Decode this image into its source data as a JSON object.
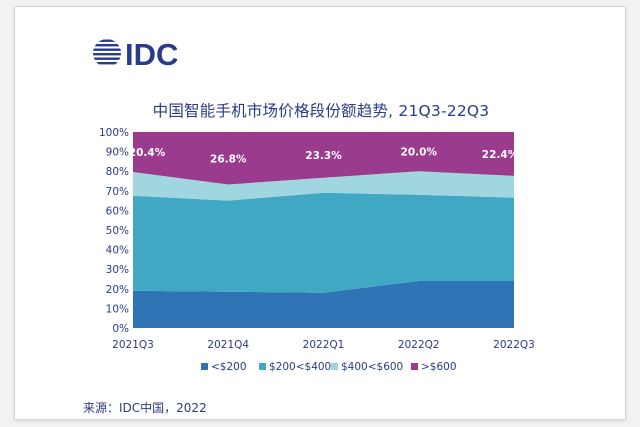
{
  "logo_text": "IDC",
  "footer": {
    "source": "来源：IDC中国，2022"
  },
  "colors": {
    "navy": "#2a3a8c",
    "series": [
      "#2e74b5",
      "#41a8c4",
      "#9fd6df",
      "#9b3b8d"
    ],
    "band_labels": "#ffffff"
  },
  "chart_data": {
    "type": "area",
    "stacked": true,
    "title": "中国智能手机市场价格段份额趋势, 21Q3-22Q3",
    "categories": [
      "2021Q3",
      "2021Q4",
      "2022Q1",
      "2022Q2",
      "2022Q3"
    ],
    "series": [
      {
        "name": "<$200",
        "values": [
          19.0,
          18.5,
          18.0,
          24.0,
          24.0
        ]
      },
      {
        "name": "$200<$400",
        "values": [
          48.5,
          46.5,
          51.0,
          44.0,
          42.5
        ]
      },
      {
        "name": "$400<$600",
        "values": [
          12.1,
          8.2,
          7.7,
          12.0,
          11.1
        ]
      },
      {
        "name": ">$600",
        "values": [
          20.4,
          26.8,
          23.3,
          20.0,
          22.4
        ]
      }
    ],
    "data_labels": [
      "20.4%",
      "26.8%",
      "23.3%",
      "20.0%",
      "22.4%"
    ],
    "y_ticks": [
      "0%",
      "10%",
      "20%",
      "30%",
      "40%",
      "50%",
      "60%",
      "70%",
      "80%",
      "90%",
      "100%"
    ],
    "ylim": [
      0,
      100
    ],
    "legend_position": "bottom",
    "grid": false
  }
}
